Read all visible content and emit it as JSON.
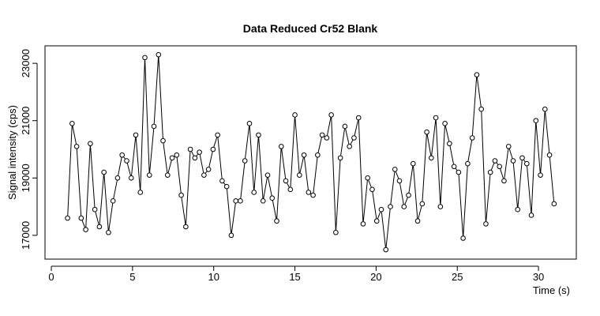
{
  "chart_data": {
    "type": "line",
    "title": "Data Reduced Cr52 Blank",
    "x_label": "Time (s)",
    "y_label": "Signal intensity (cps)",
    "x": [
      1.0,
      1.28,
      1.56,
      1.84,
      2.12,
      2.4,
      2.68,
      2.96,
      3.24,
      3.52,
      3.8,
      4.08,
      4.36,
      4.64,
      4.92,
      5.2,
      5.48,
      5.76,
      6.04,
      6.32,
      6.6,
      6.88,
      7.16,
      7.44,
      7.72,
      8.0,
      8.28,
      8.56,
      8.84,
      9.12,
      9.4,
      9.68,
      9.96,
      10.24,
      10.52,
      10.8,
      11.08,
      11.36,
      11.64,
      11.92,
      12.2,
      12.48,
      12.76,
      13.04,
      13.32,
      13.6,
      13.88,
      14.16,
      14.44,
      14.72,
      15.0,
      15.28,
      15.56,
      15.84,
      16.12,
      16.4,
      16.68,
      16.96,
      17.24,
      17.52,
      17.8,
      18.08,
      18.36,
      18.64,
      18.92,
      19.2,
      19.48,
      19.76,
      20.04,
      20.32,
      20.6,
      20.88,
      21.16,
      21.44,
      21.72,
      22.0,
      22.28,
      22.56,
      22.84,
      23.12,
      23.4,
      23.68,
      23.96,
      24.24,
      24.52,
      24.8,
      25.08,
      25.36,
      25.64,
      25.92,
      26.2,
      26.48,
      26.76,
      27.04,
      27.32,
      27.6,
      27.88,
      28.16,
      28.44,
      28.72,
      29.0,
      29.28,
      29.56,
      29.84,
      30.12,
      30.4,
      30.68,
      30.96
    ],
    "values": [
      17600,
      20900,
      20100,
      17600,
      17200,
      20200,
      17900,
      17300,
      19200,
      17100,
      18200,
      19000,
      19800,
      19600,
      19000,
      20500,
      18500,
      23200,
      19100,
      20800,
      23300,
      20300,
      19100,
      19700,
      19800,
      18400,
      17300,
      20000,
      19700,
      19900,
      19100,
      19300,
      20000,
      20500,
      18900,
      18700,
      17000,
      18200,
      18200,
      19600,
      20900,
      18500,
      20500,
      18200,
      19100,
      18300,
      17500,
      20100,
      18900,
      18600,
      21200,
      19100,
      19800,
      18500,
      18400,
      19800,
      20500,
      20400,
      21200,
      17100,
      19700,
      20800,
      20100,
      20400,
      21100,
      17400,
      19000,
      18600,
      17500,
      17900,
      16500,
      18000,
      19300,
      18900,
      18000,
      18400,
      19500,
      17500,
      18100,
      20600,
      19700,
      21100,
      18000,
      20900,
      20200,
      19400,
      19200,
      16900,
      19500,
      20400,
      22600,
      21400,
      17400,
      19200,
      19600,
      19400,
      18900,
      20100,
      19600,
      17900,
      19700,
      19500,
      17700,
      21000,
      19100,
      21400,
      19800,
      18100
    ],
    "color": "#000000",
    "xlim": [
      -0.39,
      32.33
    ],
    "ylim": [
      16170,
      23610
    ],
    "xticks": [
      0,
      5,
      10,
      15,
      20,
      25,
      30
    ],
    "yticks": [
      17000,
      19000,
      21000,
      23000
    ]
  }
}
